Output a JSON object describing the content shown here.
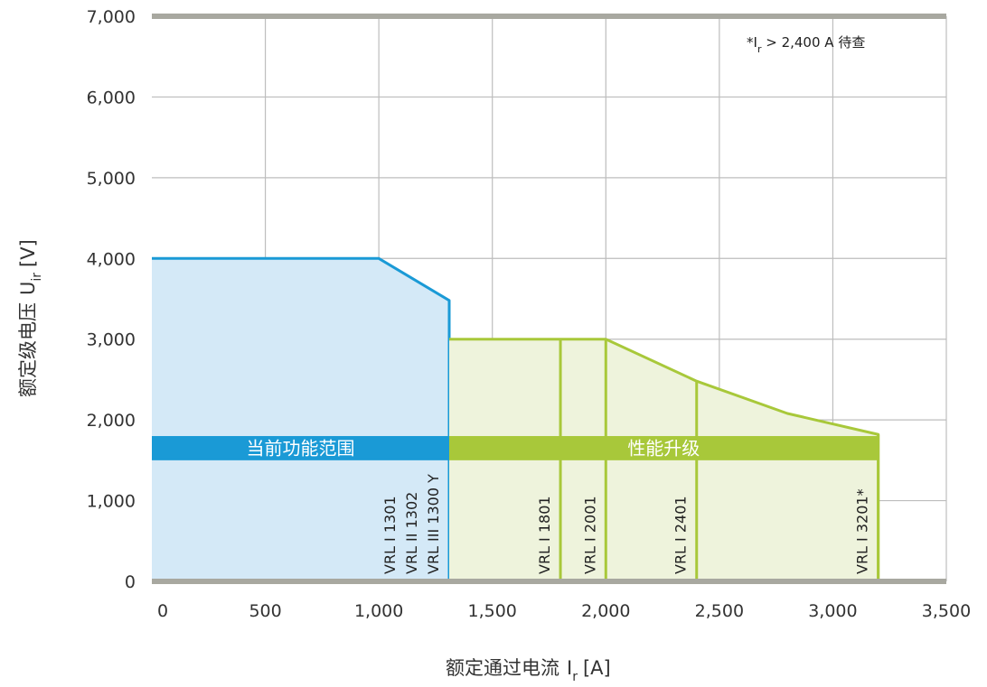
{
  "chart_data": {
    "type": "area",
    "xlabel": "额定通过电流",
    "xlabel_symbol": "I",
    "xlabel_sub": "r",
    "xlabel_unit": "[A]",
    "ylabel": "额定级电压",
    "ylabel_symbol": "U",
    "ylabel_sub": "ir",
    "ylabel_unit": "[V]",
    "xlim": [
      0,
      3500
    ],
    "ylim": [
      0,
      7000
    ],
    "x_ticks": [
      0,
      500,
      1000,
      1500,
      2000,
      2500,
      3000,
      3500
    ],
    "x_tick_labels": [
      "0",
      "500",
      "1,000",
      "1,500",
      "2,000",
      "2,500",
      "3,000",
      "3,500"
    ],
    "y_ticks": [
      0,
      1000,
      2000,
      3000,
      4000,
      5000,
      6000,
      7000
    ],
    "y_tick_labels": [
      "0",
      "1,000",
      "2,000",
      "3,000",
      "4,000",
      "5,000",
      "6,000",
      "7,000"
    ],
    "grid": true,
    "note": {
      "prefix": "*I",
      "sub": "r",
      "suffix": " > 2,400 A 待查"
    },
    "series": [
      {
        "name": "当前功能范围",
        "color": "#1a9ad6",
        "fill": "#d4e9f7",
        "points": [
          [
            0,
            4000
          ],
          [
            1000,
            4000
          ],
          [
            1310,
            3480
          ],
          [
            1310,
            0
          ]
        ],
        "band": [
          1500,
          1800
        ]
      },
      {
        "name": "性能升级",
        "color": "#a8c83a",
        "fill": "#eef3dc",
        "points": [
          [
            1310,
            3000
          ],
          [
            2000,
            3000
          ],
          [
            2400,
            2480
          ],
          [
            2800,
            2080
          ],
          [
            3200,
            1820
          ],
          [
            3200,
            0
          ]
        ],
        "band": [
          1500,
          1800
        ]
      }
    ],
    "models": [
      {
        "x": 1310,
        "labels": [
          "VRL I 1301",
          "VRL II 1302",
          "VRL III 1300 Y"
        ],
        "series": 0
      },
      {
        "x": 1800,
        "labels": [
          "VRL I 1801"
        ],
        "series": 1,
        "top": 3000
      },
      {
        "x": 2000,
        "labels": [
          "VRL I 2001"
        ],
        "series": 1,
        "top": 3000
      },
      {
        "x": 2400,
        "labels": [
          "VRL I 2401"
        ],
        "series": 1,
        "top": 2480
      },
      {
        "x": 3200,
        "labels": [
          "VRL I 3201*"
        ],
        "series": 1,
        "top": 1820
      }
    ],
    "colors": {
      "grid": "#bdbdbd",
      "axis": "#a8a8a0",
      "text": "#333333"
    }
  }
}
